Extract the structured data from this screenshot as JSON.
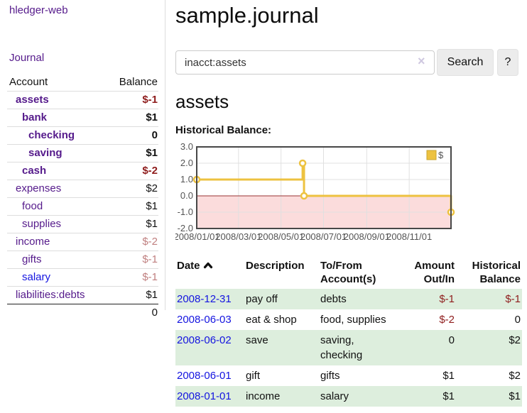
{
  "sidebar": {
    "brand": "hledger-web",
    "nav": {
      "journal": "Journal"
    },
    "table": {
      "account_header": "Account",
      "balance_header": "Balance"
    },
    "accounts": [
      {
        "name": "assets",
        "depth": 1,
        "bold": true,
        "link_tone": "visited",
        "balance": "$-1",
        "balance_tone": "negative"
      },
      {
        "name": "bank",
        "depth": 2,
        "bold": true,
        "link_tone": "visited",
        "balance": "$1",
        "balance_tone": "normal"
      },
      {
        "name": "checking",
        "depth": 3,
        "bold": true,
        "link_tone": "visited",
        "balance": "0",
        "balance_tone": "normal"
      },
      {
        "name": "saving",
        "depth": 3,
        "bold": true,
        "link_tone": "visited",
        "balance": "$1",
        "balance_tone": "normal"
      },
      {
        "name": "cash",
        "depth": 2,
        "bold": true,
        "link_tone": "visited",
        "balance": "$-2",
        "balance_tone": "negative"
      },
      {
        "name": "expenses",
        "depth": 1,
        "bold": false,
        "link_tone": "visited",
        "balance": "$2",
        "balance_tone": "normal"
      },
      {
        "name": "food",
        "depth": 2,
        "bold": false,
        "link_tone": "visited",
        "balance": "$1",
        "balance_tone": "normal"
      },
      {
        "name": "supplies",
        "depth": 2,
        "bold": false,
        "link_tone": "visited",
        "balance": "$1",
        "balance_tone": "normal"
      },
      {
        "name": "income",
        "depth": 1,
        "bold": false,
        "link_tone": "visited",
        "balance": "$-2",
        "balance_tone": "negative-muted"
      },
      {
        "name": "gifts",
        "depth": 2,
        "bold": false,
        "link_tone": "visited",
        "balance": "$-1",
        "balance_tone": "negative-muted"
      },
      {
        "name": "salary",
        "depth": 2,
        "bold": false,
        "link_tone": "unvisited",
        "balance": "$-1",
        "balance_tone": "negative-muted"
      },
      {
        "name": "liabilities:debts",
        "depth": 1,
        "bold": false,
        "link_tone": "visited",
        "balance": "$1",
        "balance_tone": "normal"
      }
    ],
    "total": "0"
  },
  "main": {
    "title": "sample.journal",
    "search": {
      "value": "inacct:assets",
      "clear_icon": "×",
      "button": "Search",
      "help_button": "?"
    },
    "account_heading": "assets",
    "chart_label": "Historical Balance:",
    "register": {
      "sort": {
        "column": "date",
        "direction": "ascending"
      },
      "headers": {
        "date": "Date",
        "description": "Description",
        "accounts": "To/From Account(s)",
        "amount": "Amount Out/In",
        "balance": "Historical Balance"
      },
      "rows": [
        {
          "date": "2008-12-31",
          "description": "pay off",
          "accounts": "debts",
          "amount": "$-1",
          "amount_negative": true,
          "balance": "$-1",
          "balance_negative": true
        },
        {
          "date": "2008-06-03",
          "description": "eat & shop",
          "accounts": "food, supplies",
          "amount": "$-2",
          "amount_negative": true,
          "balance": "0",
          "balance_negative": false
        },
        {
          "date": "2008-06-02",
          "description": "save",
          "accounts": "saving, checking",
          "amount": "0",
          "amount_negative": false,
          "balance": "$2",
          "balance_negative": false
        },
        {
          "date": "2008-06-01",
          "description": "gift",
          "accounts": "gifts",
          "amount": "$1",
          "amount_negative": false,
          "balance": "$2",
          "balance_negative": false
        },
        {
          "date": "2008-01-01",
          "description": "income",
          "accounts": "salary",
          "amount": "$1",
          "amount_negative": false,
          "balance": "$1",
          "balance_negative": false
        }
      ]
    }
  },
  "chart_data": {
    "type": "line",
    "title": "Historical Balance",
    "step": true,
    "series": [
      {
        "name": "$",
        "color": "#edc240",
        "points": [
          [
            "2008-01-01",
            1
          ],
          [
            "2008-06-01",
            2
          ],
          [
            "2008-06-03",
            0
          ],
          [
            "2008-12-31",
            -1
          ]
        ]
      }
    ],
    "x_range": [
      "2008-01-01",
      "2008-12-31"
    ],
    "x_ticks": [
      "2008/01/01",
      "2008/03/01",
      "2008/05/01",
      "2008/07/01",
      "2008/09/01",
      "2008/11/01"
    ],
    "y_ticks": [
      3.0,
      2.0,
      1.0,
      0.0,
      -1.0,
      -2.0
    ],
    "ylim": [
      -2,
      3
    ],
    "grid": true,
    "grid_color": "#e0e0e0",
    "border_color": "#474747",
    "negative_fill": "#fbdcdc",
    "zero_line_color": "#993333",
    "legend_position": "top-right",
    "legend_box_border": "#c9a42f"
  },
  "colors": {
    "link_visited_purple": "#551a8b",
    "link_unvisited_blue": "#1414e0",
    "negative_strong": "#8f1d1d",
    "negative_muted": "#c08080",
    "row_stripe_green": "#ddeedd",
    "chart_line_gold": "#edc240",
    "chart_negative_area": "#fbdcdc"
  }
}
